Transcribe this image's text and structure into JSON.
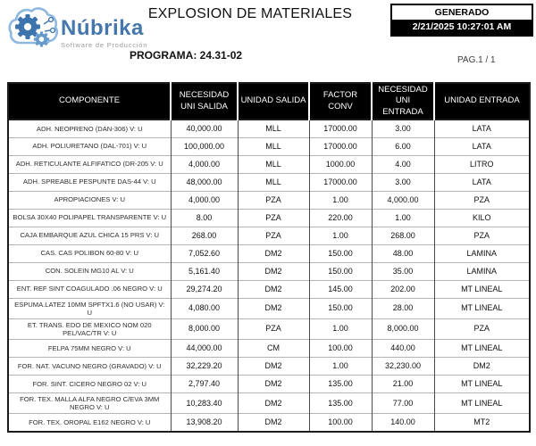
{
  "page": {
    "title": "EXPLOSION DE MATERIALES",
    "program": "PROGRAMA: 24.31-02",
    "page_indicator": "PAG.1 / 1"
  },
  "logo": {
    "name": "Núbrika",
    "tagline": "Software de Producción"
  },
  "generated": {
    "label": "GENERADO",
    "timestamp": "2/21/2025 10:27:01 AM"
  },
  "table": {
    "columns": [
      "COMPONENTE",
      "NECESIDAD\nUNI SALIDA",
      "UNIDAD SALIDA",
      "FACTOR\nCONV",
      "NECESIDAD\nUNI ENTRADA",
      "UNIDAD ENTRADA"
    ],
    "column_keys": [
      "componente",
      "necesidad-uni-salida",
      "unidad-salida",
      "factor-conv",
      "necesidad-uni-entrada",
      "unidad-entrada"
    ],
    "rows": [
      [
        "ADH. NEOPRENO (DAN-306) V: U",
        "40,000.00",
        "MLL",
        "17000.00",
        "3.00",
        "LATA"
      ],
      [
        "ADH. POLIURETANO (DAL-701) V: U",
        "100,000.00",
        "MLL",
        "17000.00",
        "6.00",
        "LATA"
      ],
      [
        "ADH. RETICULANTE ALFIFATICO (DR-205 V: U",
        "4,000.00",
        "MLL",
        "1000.00",
        "4.00",
        "LITRO"
      ],
      [
        "ADH. SPREABLE PESPUNTE DAS-44 V: U",
        "48,000.00",
        "MLL",
        "17000.00",
        "3.00",
        "LATA"
      ],
      [
        "APROPIACIONES V: U",
        "4,000.00",
        "PZA",
        "1.00",
        "4,000.00",
        "PZA"
      ],
      [
        "BOLSA 30X40 POLIPAPEL TRANSPARENTE V: U",
        "8.00",
        "PZA",
        "220.00",
        "1.00",
        "KILO"
      ],
      [
        "CAJA EMBARQUE AZUL CHICA 15 PRS V: U",
        "268.00",
        "PZA",
        "1.00",
        "268.00",
        "PZA"
      ],
      [
        "CAS. CAS POLIBON 60-80 V: U",
        "7,052.60",
        "DM2",
        "150.00",
        "48.00",
        "LAMINA"
      ],
      [
        "CON. SOLEIN MG10 AL V: U",
        "5,161.40",
        "DM2",
        "150.00",
        "35.00",
        "LAMINA"
      ],
      [
        "ENT. REF SINT COAGULADO .06 NEGRO V: U",
        "29,274.20",
        "DM2",
        "145.00",
        "202.00",
        "MT LINEAL"
      ],
      [
        "ESPUMA.LATEZ 10MM SPFTX1.6 (NO USAR) V: U",
        "4,080.00",
        "DM2",
        "150.00",
        "28.00",
        "MT LINEAL"
      ],
      [
        "ET. TRANS. EDO DE MEXICO NOM 020 PEL/VAC/TR V: U",
        "8,000.00",
        "PZA",
        "1.00",
        "8,000.00",
        "PZA"
      ],
      [
        "FELPA 75MM NEGRO V: U",
        "44,000.00",
        "CM",
        "100.00",
        "440.00",
        "MT LINEAL"
      ],
      [
        "FOR. NAT. VACUNO NEGRO (GRAVADO) V: U",
        "32,229.20",
        "DM2",
        "1.00",
        "32,230.00",
        "DM2"
      ],
      [
        "FOR. SINT. CICERO NEGRO 02 V: U",
        "2,797.40",
        "DM2",
        "135.00",
        "21.00",
        "MT LINEAL"
      ],
      [
        "FOR. TEX. MALLA ALFA NEGRO C/EVA 3MM NEGRO V: U",
        "10,283.40",
        "DM2",
        "135.00",
        "77.00",
        "MT LINEAL"
      ],
      [
        "FOR. TEX. OROPAL E162 NEGRO V: U",
        "13,908.20",
        "DM2",
        "100.00",
        "140.00",
        "MT2"
      ]
    ]
  },
  "colors": {
    "brand_blue": "#4577ad",
    "brand_light_blue": "#8fb8e0",
    "header_bg": "#000000",
    "header_text": "#ffffff",
    "generated_bg": "#000000",
    "row_divider": "#b4b4b4",
    "column_divider": "#4a4a4a"
  }
}
